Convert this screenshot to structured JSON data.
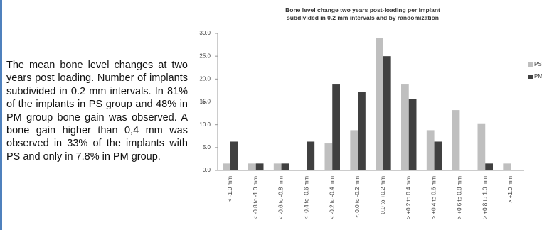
{
  "chart_data": {
    "type": "bar",
    "title": "Bone level change two years post-loading per implant",
    "subtitle": "subdivided in 0.2 mm intervals and by randomization",
    "y_label": "%",
    "categories": [
      "< -1.0 mm",
      "< -0.8 to -1.0 mm",
      "< -0.6 to -0.8 mm",
      "< -0.4 to -0.6 mm",
      "< -0.2 to -0.4 mm",
      "< 0.0 to -0.2 mm",
      "0.0 to +0.2 mm",
      "> +0.2 to 0.4 mm",
      "> +0.4 to 0.6 mm",
      "> +0.6 to 0.8 mm",
      "> +0.8 to 1.0 mm",
      "> +1.0 mm"
    ],
    "series": [
      {
        "name": "PS",
        "color": "#bfbfbf",
        "values": [
          1.5,
          1.5,
          1.5,
          0,
          5.9,
          8.8,
          29.0,
          18.8,
          8.8,
          13.2,
          10.3,
          1.5
        ]
      },
      {
        "name": "PM",
        "color": "#404040",
        "values": [
          6.3,
          1.5,
          1.5,
          6.3,
          18.8,
          17.2,
          25.0,
          15.6,
          6.3,
          0,
          1.5,
          0
        ]
      }
    ],
    "ylim": [
      0,
      30
    ],
    "yticks": [
      {
        "value": 0,
        "label": "0.0"
      },
      {
        "value": 5,
        "label": "5.0"
      },
      {
        "value": 10,
        "label": "10.0"
      },
      {
        "value": 15,
        "label": "15.0"
      },
      {
        "value": 20,
        "label": "20.0"
      },
      {
        "value": 25,
        "label": "25.0"
      },
      {
        "value": 30,
        "label": "30.0"
      }
    ],
    "grid": false,
    "legend": "right"
  },
  "text": "The mean bone level changes at two years post loading. Number of implants subdivided in 0.2 mm intervals. In 81% of the implants in PS group and 48% in PM group bone gain was observed. A bone gain higher than 0,4 mm was observed in 33% of the implants with PS and only in 7.8% in PM group."
}
